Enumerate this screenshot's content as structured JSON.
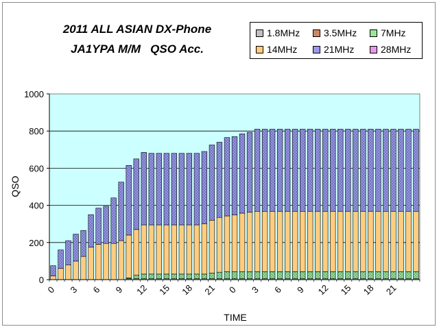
{
  "title_line1": "2011 ALL ASIAN DX-Phone",
  "title_line2": "JA1YPA M/M   QSO Acc.",
  "chart_data": {
    "type": "bar",
    "stacked": true,
    "xlabel": "TIME",
    "ylabel": "QSO",
    "ylim": [
      0,
      1000
    ],
    "yticks": [
      0,
      200,
      400,
      600,
      800,
      1000
    ],
    "x_tick_labels": [
      "0",
      "3",
      "6",
      "9",
      "12",
      "15",
      "18",
      "21",
      "0",
      "3",
      "6",
      "9",
      "12",
      "15",
      "18",
      "21"
    ],
    "x_tick_every": 3,
    "legend_position": "top-right",
    "plot_background": "#ccffff",
    "series": [
      {
        "name": "1.8MHz",
        "color": "#c0c0c0",
        "values": [
          0,
          0,
          0,
          0,
          0,
          0,
          0,
          0,
          0,
          0,
          0,
          0,
          0,
          0,
          0,
          0,
          0,
          0,
          0,
          0,
          0,
          0,
          0,
          0,
          0,
          0,
          0,
          0,
          0,
          0,
          0,
          0,
          0,
          0,
          0,
          0,
          0,
          0,
          0,
          0,
          0,
          0,
          0,
          0,
          0,
          0,
          0,
          0,
          0
        ]
      },
      {
        "name": "3.5MHz",
        "color": "#cc8866",
        "values": [
          0,
          0,
          0,
          0,
          0,
          0,
          0,
          0,
          0,
          0,
          5,
          5,
          5,
          5,
          5,
          5,
          5,
          5,
          5,
          5,
          5,
          5,
          5,
          5,
          5,
          5,
          5,
          5,
          5,
          5,
          5,
          5,
          5,
          5,
          5,
          5,
          5,
          5,
          5,
          5,
          5,
          5,
          5,
          5,
          5,
          5,
          5,
          5,
          5
        ]
      },
      {
        "name": "7MHz",
        "color": "#99e699",
        "values": [
          0,
          0,
          0,
          0,
          0,
          0,
          0,
          0,
          0,
          0,
          5,
          20,
          25,
          25,
          25,
          25,
          25,
          25,
          25,
          25,
          25,
          30,
          35,
          38,
          38,
          38,
          38,
          38,
          38,
          38,
          38,
          38,
          38,
          38,
          38,
          38,
          38,
          38,
          38,
          38,
          38,
          38,
          38,
          38,
          38,
          38,
          38,
          38,
          38
        ]
      },
      {
        "name": "14MHz",
        "color": "#ffcc80",
        "values": [
          20,
          60,
          80,
          100,
          125,
          175,
          190,
          195,
          195,
          210,
          230,
          245,
          265,
          265,
          265,
          265,
          265,
          265,
          265,
          265,
          270,
          285,
          295,
          300,
          305,
          315,
          320,
          325,
          325,
          325,
          325,
          325,
          325,
          325,
          325,
          325,
          325,
          325,
          325,
          325,
          325,
          325,
          325,
          325,
          325,
          325,
          325,
          325,
          325
        ]
      },
      {
        "name": "21MHz",
        "color": "#9999ee",
        "values": [
          55,
          100,
          130,
          145,
          140,
          175,
          195,
          200,
          245,
          315,
          375,
          380,
          390,
          385,
          385,
          385,
          385,
          385,
          385,
          385,
          390,
          405,
          405,
          422,
          422,
          427,
          430,
          442,
          442,
          442,
          442,
          442,
          442,
          442,
          442,
          442,
          442,
          442,
          442,
          442,
          442,
          442,
          442,
          442,
          442,
          442,
          442,
          442,
          442
        ]
      },
      {
        "name": "28MHz",
        "color": "#e699e6",
        "values": [
          0,
          0,
          0,
          0,
          0,
          0,
          0,
          0,
          0,
          0,
          0,
          0,
          0,
          0,
          0,
          0,
          0,
          0,
          0,
          0,
          0,
          0,
          0,
          0,
          0,
          0,
          0,
          0,
          0,
          0,
          0,
          0,
          0,
          0,
          0,
          0,
          0,
          0,
          0,
          0,
          0,
          0,
          0,
          0,
          0,
          0,
          0,
          0,
          0
        ]
      }
    ]
  }
}
